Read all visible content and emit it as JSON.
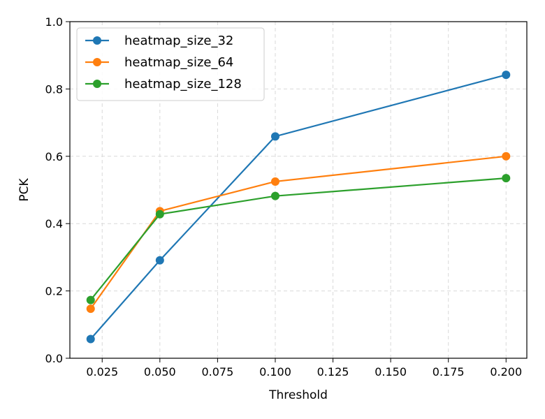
{
  "chart_data": {
    "type": "line",
    "title": "",
    "xlabel": "Threshold",
    "ylabel": "PCK",
    "x": [
      0.02,
      0.05,
      0.1,
      0.2
    ],
    "xlim": [
      0.011,
      0.209
    ],
    "ylim": [
      0.0,
      1.0
    ],
    "xticks": [
      "0.025",
      "0.050",
      "0.075",
      "0.100",
      "0.125",
      "0.150",
      "0.175",
      "0.200"
    ],
    "yticks": [
      "0.0",
      "0.2",
      "0.4",
      "0.6",
      "0.8",
      "1.0"
    ],
    "grid": true,
    "legend_position": "top-left",
    "series": [
      {
        "name": "heatmap_size_32",
        "color": "#1f77b4",
        "values": [
          0.057,
          0.291,
          0.659,
          0.842
        ]
      },
      {
        "name": "heatmap_size_64",
        "color": "#ff7f0e",
        "values": [
          0.147,
          0.437,
          0.525,
          0.6
        ]
      },
      {
        "name": "heatmap_size_128",
        "color": "#2ca02c",
        "values": [
          0.173,
          0.428,
          0.482,
          0.535
        ]
      }
    ]
  }
}
